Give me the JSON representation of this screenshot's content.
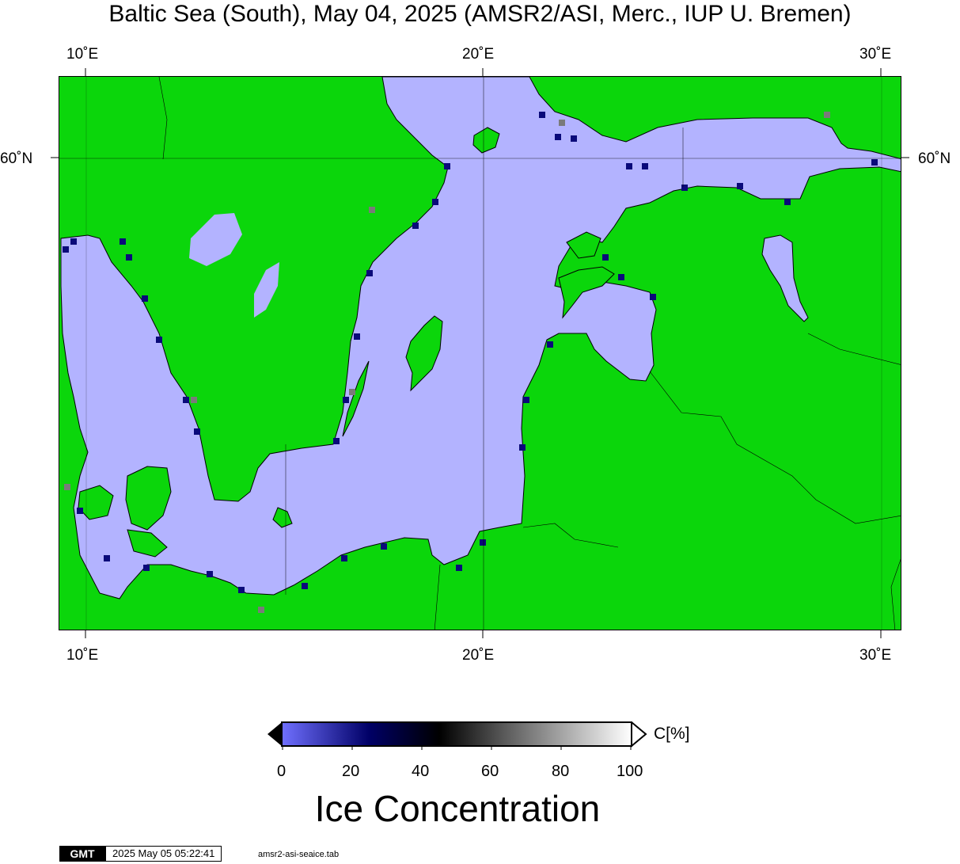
{
  "title": "Baltic Sea (South), May 04, 2025 (AMSR2/ASI, Merc., IUP U. Bremen)",
  "map": {
    "longitude_ticks": [
      "10˚E",
      "20˚E",
      "30˚E"
    ],
    "latitude_ticks": [
      "60˚N"
    ],
    "colors": {
      "land": "#0bd60b",
      "open_water_low_ice": "#b3b3ff",
      "coastline": "#000000"
    }
  },
  "colorbar": {
    "label": "Ice Concentration",
    "unit": "C[%]",
    "ticks": [
      "0",
      "20",
      "40",
      "60",
      "80",
      "100"
    ],
    "range": [
      0,
      100
    ],
    "colors": [
      "#7070ff",
      "#000066",
      "#000000",
      "#808080",
      "#ffffff"
    ]
  },
  "footer": {
    "logo": "GMT",
    "timestamp": "2025 May 05 05:22:41",
    "source_file": "amsr2-asi-seaice.tab"
  }
}
